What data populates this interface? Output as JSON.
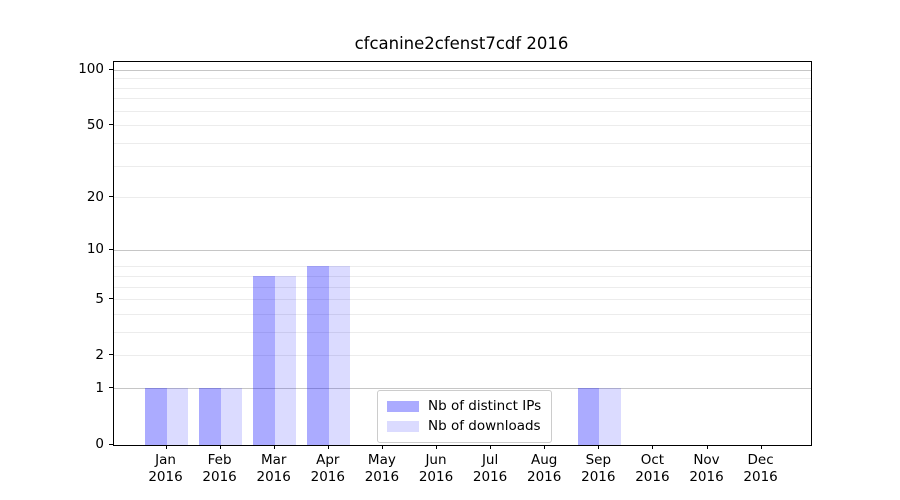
{
  "title": "cfcanine2cfenst7cdf 2016",
  "chart_data": {
    "type": "bar",
    "title": "cfcanine2cfenst7cdf 2016",
    "categories": [
      {
        "month": "Jan",
        "year": "2016"
      },
      {
        "month": "Feb",
        "year": "2016"
      },
      {
        "month": "Mar",
        "year": "2016"
      },
      {
        "month": "Apr",
        "year": "2016"
      },
      {
        "month": "May",
        "year": "2016"
      },
      {
        "month": "Jun",
        "year": "2016"
      },
      {
        "month": "Jul",
        "year": "2016"
      },
      {
        "month": "Aug",
        "year": "2016"
      },
      {
        "month": "Sep",
        "year": "2016"
      },
      {
        "month": "Oct",
        "year": "2016"
      },
      {
        "month": "Nov",
        "year": "2016"
      },
      {
        "month": "Dec",
        "year": "2016"
      }
    ],
    "series": [
      {
        "name": "Nb of distinct IPs",
        "color": "rgba(0,0,255,0.33)",
        "values": [
          1,
          1,
          7,
          8,
          0,
          0,
          0,
          0,
          1,
          0,
          0,
          0
        ]
      },
      {
        "name": "Nb of downloads",
        "color": "rgba(0,0,255,0.14)",
        "values": [
          1,
          1,
          7,
          8,
          0,
          0,
          0,
          0,
          1,
          0,
          0,
          0
        ]
      }
    ],
    "xlabel": "",
    "ylabel": "",
    "yscale": "log10(1+value)",
    "ylim": [
      0,
      111
    ],
    "y_ticks": [
      0,
      1,
      2,
      5,
      10,
      20,
      50,
      100
    ],
    "grid_major_values": [
      1,
      10,
      100
    ],
    "grid_minor_values": [
      2,
      3,
      4,
      5,
      6,
      7,
      8,
      20,
      30,
      40,
      50,
      60,
      70,
      80,
      90
    ],
    "grid": "on",
    "legend_position": "inside-bottom-center"
  },
  "colors": {
    "distinct_ips_bar": "rgba(0,0,255,0.33)",
    "downloads_bar": "rgba(0,0,255,0.14)",
    "grid_major": "#c6c6c6",
    "grid_minor": "#ececec",
    "axis": "#000000",
    "legend_border": "#cccccc"
  },
  "legend": {
    "items": [
      {
        "label": "Nb of distinct IPs"
      },
      {
        "label": "Nb of downloads"
      }
    ]
  }
}
